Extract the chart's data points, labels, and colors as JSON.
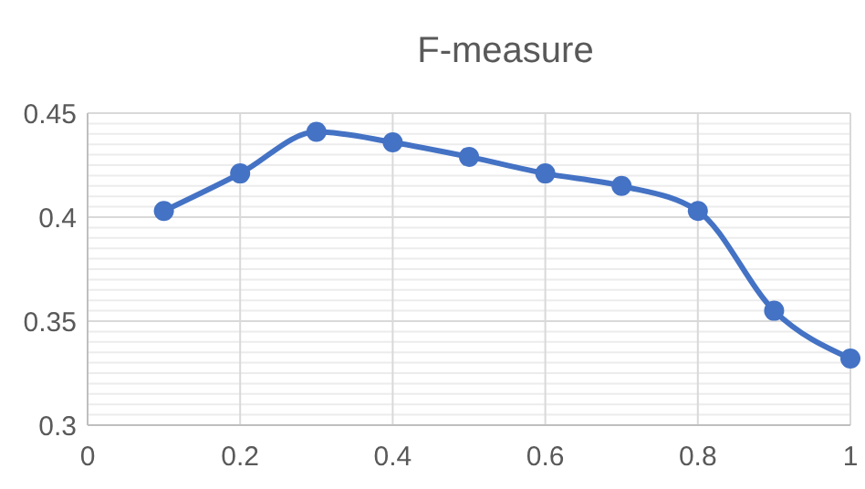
{
  "chart_data": {
    "type": "line",
    "title": "F-measure",
    "x": [
      0.1,
      0.2,
      0.3,
      0.4,
      0.5,
      0.6,
      0.7,
      0.8,
      0.9,
      1
    ],
    "series": [
      {
        "color": "#4472c4",
        "values": [
          0.403,
          0.421,
          0.441,
          0.436,
          0.429,
          0.421,
          0.415,
          0.403,
          0.355,
          0.332
        ]
      }
    ],
    "xlim": [
      0,
      1
    ],
    "xticks": [
      0,
      0.2,
      0.4,
      0.6,
      0.8,
      1
    ],
    "ylim": [
      0.3,
      0.45
    ],
    "yticks": [
      0.3,
      {
        "value": 0.305,
        "label": null
      },
      {
        "value": 0.31,
        "label": null
      },
      {
        "value": 0.315,
        "label": null
      },
      {
        "value": 0.32,
        "label": null
      },
      {
        "value": 0.325,
        "label": null
      },
      {
        "value": 0.33,
        "label": null
      },
      {
        "value": 0.335,
        "label": null
      },
      {
        "value": 0.34,
        "label": null
      },
      {
        "value": 0.345,
        "label": null
      },
      0.35,
      {
        "value": 0.355,
        "label": null
      },
      {
        "value": 0.36,
        "label": null
      },
      {
        "value": 0.365,
        "label": null
      },
      {
        "value": 0.37,
        "label": null
      },
      {
        "value": 0.375,
        "label": null
      },
      {
        "value": 0.38,
        "label": null
      },
      {
        "value": 0.385,
        "label": null
      },
      {
        "value": 0.39,
        "label": null
      },
      {
        "value": 0.395,
        "label": null
      },
      0.4,
      {
        "value": 0.405,
        "label": null
      },
      {
        "value": 0.41,
        "label": null
      },
      {
        "value": 0.415,
        "label": null
      },
      {
        "value": 0.42,
        "label": null
      },
      {
        "value": 0.425,
        "label": null
      },
      {
        "value": 0.43,
        "label": null
      },
      {
        "value": 0.435,
        "label": null
      },
      {
        "value": 0.44,
        "label": null
      },
      {
        "value": 0.445,
        "label": null
      },
      0.45
    ],
    "grid": true,
    "marker": "circle",
    "line_style": "solid"
  }
}
